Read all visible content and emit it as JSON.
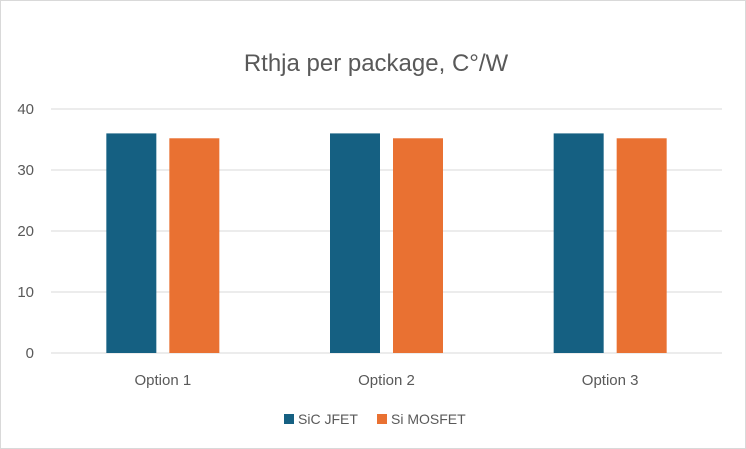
{
  "chart_data": {
    "type": "bar",
    "title": "Rthja per package, C°/W",
    "xlabel": "",
    "ylabel": "",
    "categories": [
      "Option 1",
      "Option 2",
      "Option 3"
    ],
    "series": [
      {
        "name": "SiC JFET",
        "values": [
          36,
          36,
          36
        ],
        "color": "#156082"
      },
      {
        "name": "Si MOSFET",
        "values": [
          35.2,
          35.2,
          35.2
        ],
        "color": "#E97132"
      }
    ],
    "ylim": [
      0,
      40
    ],
    "yticks": [
      0,
      10,
      20,
      30,
      40
    ],
    "grid": true,
    "legend_position": "bottom"
  }
}
